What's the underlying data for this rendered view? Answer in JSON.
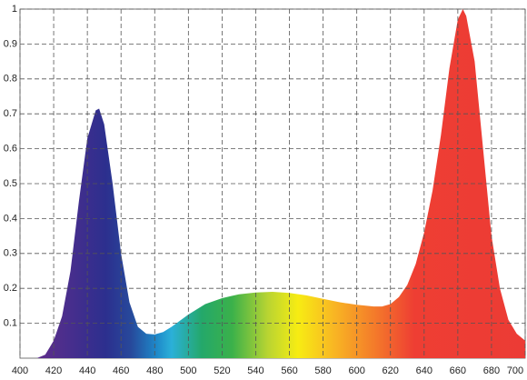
{
  "chart_data": {
    "type": "area",
    "x": [
      410,
      415,
      420,
      425,
      430,
      435,
      440,
      445,
      447,
      450,
      455,
      460,
      465,
      470,
      475,
      480,
      485,
      490,
      500,
      510,
      520,
      530,
      540,
      550,
      560,
      570,
      580,
      590,
      600,
      610,
      615,
      620,
      625,
      630,
      635,
      640,
      645,
      650,
      655,
      660,
      663,
      665,
      670,
      675,
      680,
      685,
      690,
      695,
      700
    ],
    "values": [
      0,
      0.01,
      0.05,
      0.12,
      0.25,
      0.45,
      0.63,
      0.71,
      0.715,
      0.67,
      0.5,
      0.3,
      0.16,
      0.09,
      0.07,
      0.068,
      0.075,
      0.09,
      0.125,
      0.155,
      0.172,
      0.183,
      0.188,
      0.19,
      0.187,
      0.18,
      0.17,
      0.16,
      0.153,
      0.148,
      0.148,
      0.155,
      0.175,
      0.21,
      0.27,
      0.36,
      0.48,
      0.64,
      0.83,
      0.97,
      1.0,
      0.98,
      0.85,
      0.6,
      0.35,
      0.2,
      0.11,
      0.07,
      0.05
    ],
    "xlim": [
      400,
      700
    ],
    "ylim": [
      0,
      1
    ],
    "xticks": [
      400,
      420,
      440,
      460,
      480,
      500,
      520,
      540,
      560,
      580,
      600,
      620,
      640,
      660,
      680,
      700
    ],
    "yticks": [
      0.1,
      0.2,
      0.3,
      0.4,
      0.5,
      0.6,
      0.7,
      0.8,
      0.9,
      1
    ],
    "grid": true
  }
}
